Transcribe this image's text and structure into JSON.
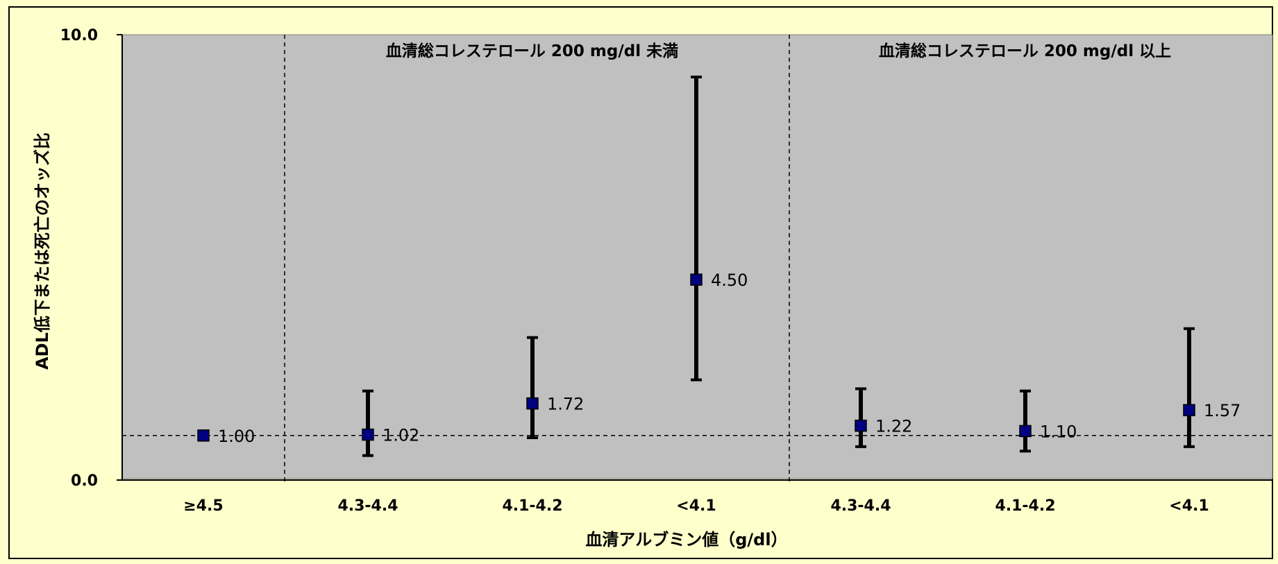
{
  "colors": {
    "page_background": "#ffffcc",
    "plot_background": "#c0c0c0",
    "marker": "#000080",
    "error_bar": "#000000"
  },
  "chart_data": {
    "type": "scatter",
    "subtype": "odds-ratio error-bar plot",
    "title": "",
    "xlabel": "血清アルブミン値（g/dl）",
    "ylabel": "ADL低下または死亡のオッズ比",
    "ylim": [
      0.0,
      10.0
    ],
    "y_ticks": [
      "0.0",
      "10.0"
    ],
    "reference_line": 1.0,
    "grid": false,
    "legend": "none",
    "groups": [
      {
        "label": "",
        "categories": [
          0
        ]
      },
      {
        "label": "血清総コレステロール 200 mg/dl 未満",
        "categories": [
          1,
          2,
          3
        ]
      },
      {
        "label": "血清総コレステロール 200 mg/dl 以上",
        "categories": [
          4,
          5,
          6
        ]
      }
    ],
    "categories": [
      "≥4.5",
      "4.3-4.4",
      "4.1-4.2",
      "<4.1",
      "4.3-4.4",
      "4.1-4.2",
      "<4.1"
    ],
    "points": [
      {
        "value": 1.0,
        "label": "1.00",
        "lower": null,
        "upper": null
      },
      {
        "value": 1.02,
        "label": "1.02",
        "lower": 0.55,
        "upper": 2.0
      },
      {
        "value": 1.72,
        "label": "1.72",
        "lower": 0.95,
        "upper": 3.2
      },
      {
        "value": 4.5,
        "label": "4.50",
        "lower": 2.25,
        "upper": 9.05
      },
      {
        "value": 1.22,
        "label": "1.22",
        "lower": 0.75,
        "upper": 2.05
      },
      {
        "value": 1.1,
        "label": "1.10",
        "lower": 0.65,
        "upper": 2.0
      },
      {
        "value": 1.57,
        "label": "1.57",
        "lower": 0.75,
        "upper": 3.4
      }
    ]
  }
}
